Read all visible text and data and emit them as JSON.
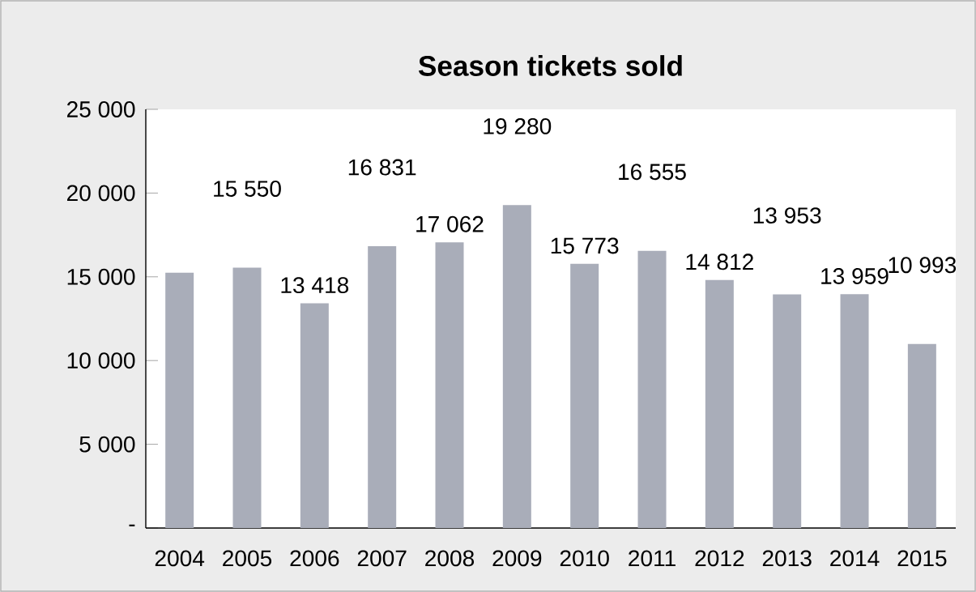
{
  "chart_data": {
    "type": "bar",
    "title": "Season tickets sold",
    "categories": [
      "2004",
      "2005",
      "2006",
      "2007",
      "2008",
      "2009",
      "2010",
      "2011",
      "2012",
      "2013",
      "2014",
      "2015"
    ],
    "values": [
      15250,
      15550,
      13418,
      16831,
      17062,
      19280,
      15773,
      16555,
      14812,
      13953,
      13959,
      10993
    ],
    "value_labels": [
      null,
      "15 550",
      "13 418",
      "16 831",
      "17 062",
      "19 280",
      "15 773",
      "16 555",
      "14 812",
      "13 953",
      "13 959",
      "10 993"
    ],
    "color": "#a9adb9",
    "ylim": [
      0,
      25000
    ],
    "yticks": [
      {
        "value": 0,
        "label": "-"
      },
      {
        "value": 5000,
        "label": "5 000"
      },
      {
        "value": 10000,
        "label": "10 000"
      },
      {
        "value": 15000,
        "label": "15 000"
      },
      {
        "value": 20000,
        "label": "20 000"
      },
      {
        "value": 25000,
        "label": "25 000"
      }
    ],
    "grid": false
  }
}
